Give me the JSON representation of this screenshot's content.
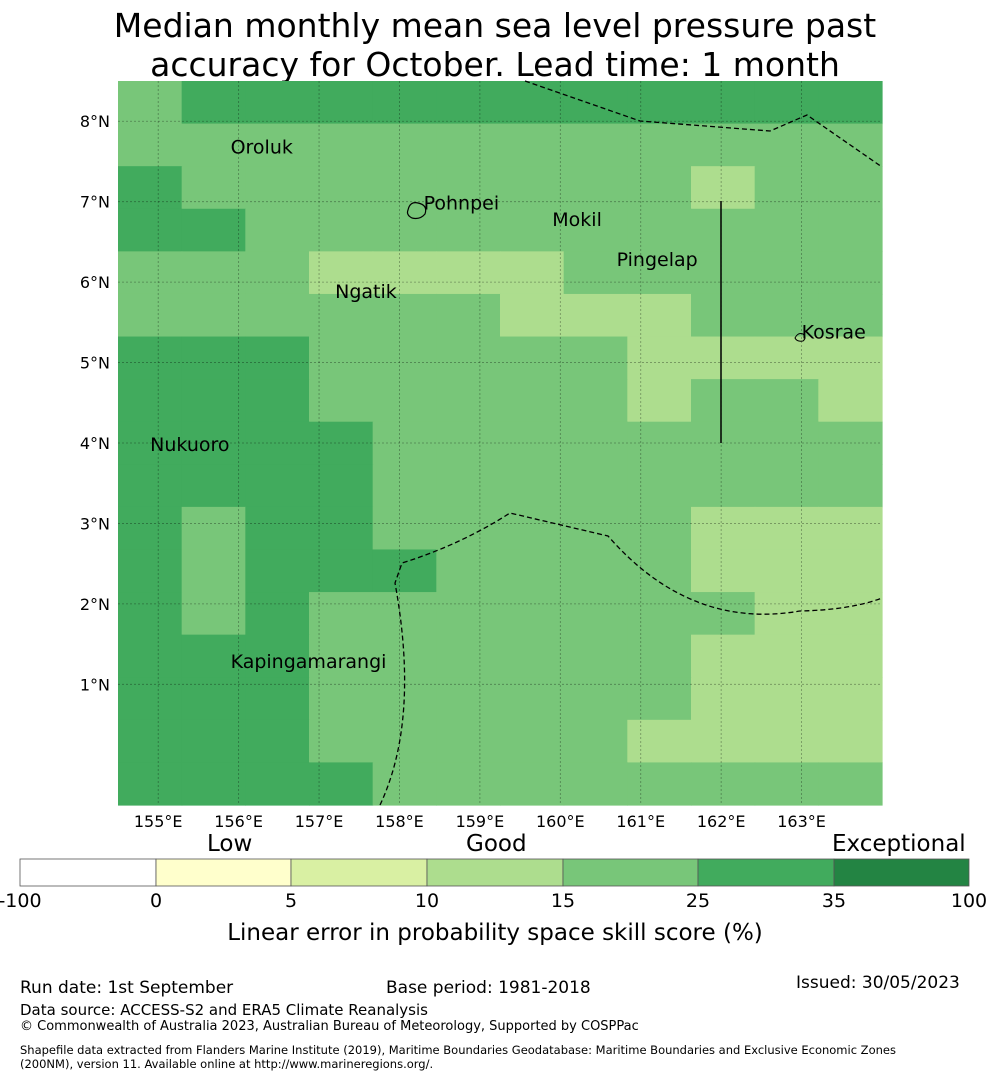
{
  "title": {
    "line1": "Median monthly mean sea level pressure past",
    "line2": "accuracy for October. Lead time: 1 month"
  },
  "map": {
    "lon_range": [
      154.5,
      164.0
    ],
    "lat_range": [
      -0.5,
      8.5
    ],
    "lon_ticks": [
      155,
      156,
      157,
      158,
      159,
      160,
      161,
      162,
      163
    ],
    "lon_tick_labels": [
      "155°E",
      "156°E",
      "157°E",
      "158°E",
      "159°E",
      "160°E",
      "161°E",
      "162°E",
      "163°E"
    ],
    "lat_ticks": [
      1,
      2,
      3,
      4,
      5,
      6,
      7,
      8
    ],
    "lat_tick_labels": [
      "1°N",
      "2°N",
      "3°N",
      "4°N",
      "5°N",
      "6°N",
      "7°N",
      "8°N"
    ],
    "grid": true,
    "place_labels": [
      {
        "name": "Oroluk",
        "lon": 155.9,
        "lat": 7.6
      },
      {
        "name": "Pohnpei",
        "lon": 158.3,
        "lat": 6.9
      },
      {
        "name": "Mokil",
        "lon": 159.9,
        "lat": 6.7
      },
      {
        "name": "Pingelap",
        "lon": 160.7,
        "lat": 6.2
      },
      {
        "name": "Ngatik",
        "lon": 157.2,
        "lat": 5.8
      },
      {
        "name": "Kosrae",
        "lon": 163.0,
        "lat": 5.3
      },
      {
        "name": "Nukuoro",
        "lon": 154.9,
        "lat": 3.9
      },
      {
        "name": "Kapingamarangi",
        "lon": 155.9,
        "lat": 1.2
      }
    ],
    "skill_categories": [
      "Low",
      "Good",
      "Good",
      "Exceptional"
    ],
    "skill_grid_note": "row-major from north; values are skill-score classes 2=5-10,3=10-15,4=15-25,5=25-35",
    "skill_grid": [
      [
        4,
        5,
        5,
        5,
        5,
        5,
        5,
        5,
        5,
        5,
        5,
        5
      ],
      [
        4,
        4,
        4,
        4,
        4,
        4,
        4,
        4,
        4,
        4,
        4,
        4
      ],
      [
        5,
        4,
        4,
        4,
        4,
        4,
        4,
        4,
        4,
        3,
        4,
        4
      ],
      [
        5,
        5,
        4,
        4,
        4,
        4,
        4,
        4,
        4,
        4,
        4,
        4
      ],
      [
        4,
        4,
        4,
        3,
        3,
        3,
        3,
        4,
        4,
        4,
        4,
        4
      ],
      [
        4,
        4,
        4,
        4,
        4,
        4,
        3,
        3,
        3,
        4,
        4,
        4
      ],
      [
        5,
        5,
        5,
        4,
        4,
        4,
        4,
        4,
        3,
        3,
        3,
        3
      ],
      [
        5,
        5,
        5,
        4,
        4,
        4,
        4,
        4,
        3,
        4,
        4,
        3
      ],
      [
        5,
        5,
        5,
        5,
        4,
        4,
        4,
        4,
        4,
        4,
        4,
        4
      ],
      [
        5,
        5,
        5,
        5,
        4,
        4,
        4,
        4,
        4,
        4,
        4,
        4
      ],
      [
        5,
        4,
        5,
        5,
        4,
        4,
        4,
        4,
        4,
        3,
        3,
        3
      ],
      [
        5,
        4,
        5,
        5,
        5,
        4,
        4,
        4,
        4,
        3,
        3,
        3
      ],
      [
        5,
        4,
        5,
        4,
        4,
        4,
        4,
        4,
        4,
        4,
        3,
        3
      ],
      [
        5,
        5,
        5,
        4,
        4,
        4,
        4,
        4,
        4,
        3,
        3,
        3
      ],
      [
        5,
        5,
        5,
        4,
        4,
        4,
        4,
        4,
        4,
        3,
        3,
        3
      ],
      [
        5,
        5,
        5,
        4,
        4,
        4,
        4,
        4,
        3,
        3,
        3,
        3
      ],
      [
        5,
        5,
        5,
        5,
        4,
        4,
        4,
        4,
        4,
        4,
        4,
        4
      ]
    ]
  },
  "colorbar": {
    "labels": {
      "low": "Low",
      "good": "Good",
      "exceptional": "Exceptional"
    },
    "ticks": [
      "-100",
      "0",
      "5",
      "10",
      "15",
      "25",
      "35",
      "100"
    ],
    "colors": [
      "#ffffff",
      "#ffffcc",
      "#d9f0a3",
      "#addd8e",
      "#78c679",
      "#41ab5d",
      "#238443"
    ],
    "title": "Linear error in probability space skill score (%)"
  },
  "footer": {
    "run_date": "Run date: 1st September",
    "base_period": "Base period: 1981-2018",
    "issued": "Issued: 30/05/2023",
    "data_source": "Data source: ACCESS-S2 and ERA5 Climate Reanalysis",
    "copyright": "© Commonwealth of Australia 2023, Australian Bureau of Meteorology, Supported by COSPPac",
    "shapefile_line1": "Shapefile data extracted from Flanders Marine Institute (2019), Maritime Boundaries Geodatabase: Maritime Boundaries and Exclusive Economic Zones",
    "shapefile_line2": "(200NM), version 11. Available online at http://www.marineregions.org/."
  }
}
